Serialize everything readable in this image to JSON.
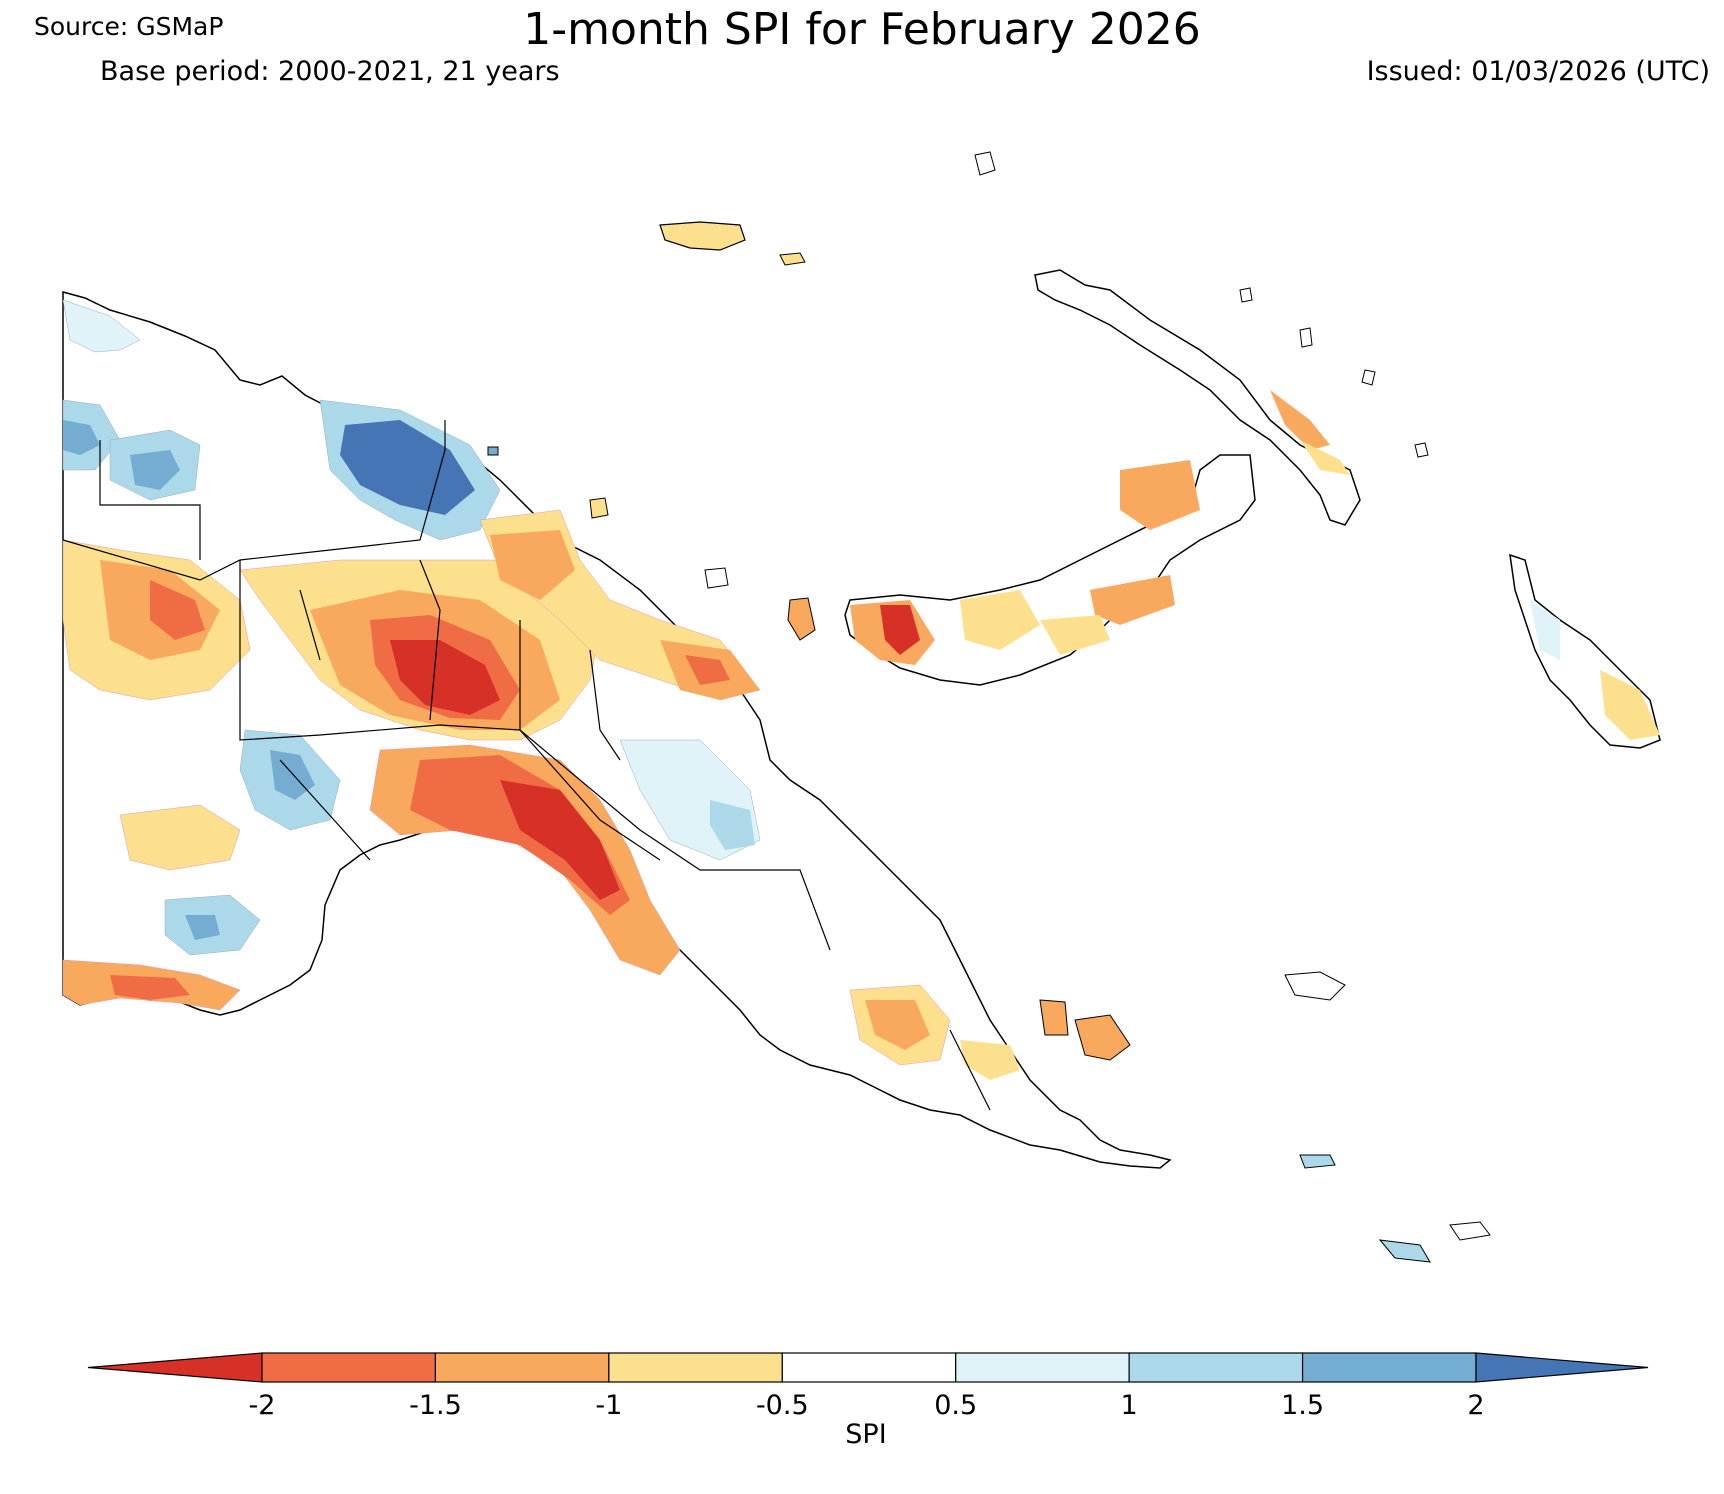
{
  "header": {
    "source": "Source: GSMaP",
    "title": "1-month SPI for February 2026",
    "base_period": "Base period: 2000-2021, 21 years",
    "issued": "Issued: 01/03/2026 (UTC)"
  },
  "colorbar": {
    "label": "SPI",
    "ticks": [
      "-2",
      "-1.5",
      "-1",
      "-0.5",
      "0.5",
      "1",
      "1.5",
      "2"
    ],
    "bins": [
      {
        "range": "< -2",
        "color": "#d73027"
      },
      {
        "range": "-2 to -1.5",
        "color": "#f06c45"
      },
      {
        "range": "-1.5 to -1",
        "color": "#f9a95e"
      },
      {
        "range": "-1 to -0.5",
        "color": "#fde08d"
      },
      {
        "range": "-0.5 to 0.5",
        "color": "#ffffff"
      },
      {
        "range": "0.5 to 1",
        "color": "#e0f3f8"
      },
      {
        "range": "1 to 1.5",
        "color": "#abd9e9"
      },
      {
        "range": "1.5 to 2",
        "color": "#74add1"
      },
      {
        "range": "> 2",
        "color": "#4575b4"
      }
    ]
  }
}
